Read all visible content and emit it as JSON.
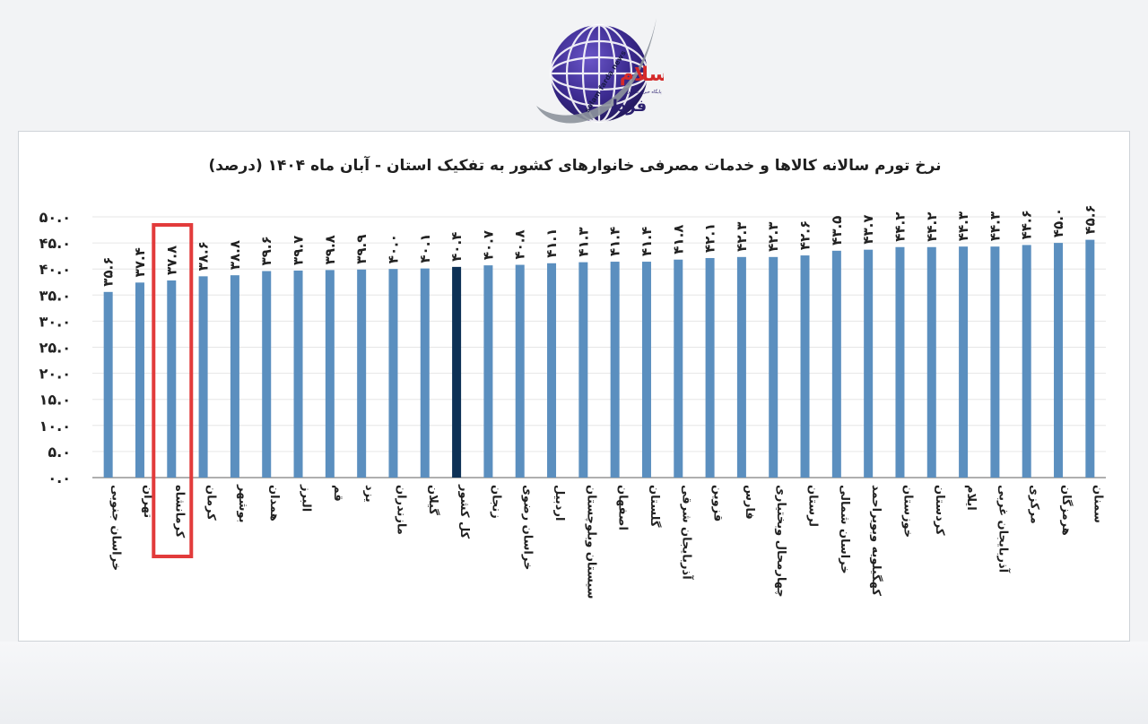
{
  "logo": {
    "text_main": "سلام",
    "text_sub": "فردا",
    "text_latin": "salam farda news",
    "text_tagline": "پایگاه خبری تحلیلی"
  },
  "colors": {
    "bar": "#5b8fbf",
    "bar_highlight": "#0d3156",
    "highlight_box": "#e23b3b",
    "axis": "#7f7f7f",
    "grid": "#e6e6e6"
  },
  "chart_data": {
    "type": "bar",
    "title": "نرخ تورم سالانه کالاها و خدمات مصرفی خانوارهای کشور به تفکیک استان - آبان ماه ۱۴۰۴ (درصد)",
    "ylim": [
      0,
      50
    ],
    "yticks": [
      "۰.۰",
      "۵.۰",
      "۱۰.۰",
      "۱۵.۰",
      "۲۰.۰",
      "۲۵.۰",
      "۳۰.۰",
      "۳۵.۰",
      "۴۰.۰",
      "۴۵.۰",
      "۵۰.۰"
    ],
    "ytick_values": [
      0,
      5,
      10,
      15,
      20,
      25,
      30,
      35,
      40,
      45,
      50
    ],
    "grid": true,
    "categories": [
      "خراسان جنوبی",
      "تهران",
      "کرمانشاه",
      "کرمان",
      "بوشهر",
      "همدان",
      "البرز",
      "قم",
      "یزد",
      "مازندران",
      "گیلان",
      "کل کشور",
      "زنجان",
      "خراسان رضوی",
      "اردبیل",
      "سیستان وبلوچستان",
      "اصفهان",
      "گلستان",
      "آذربایجان شرقی",
      "قزوین",
      "فارس",
      "چهارمحال وبختیاری",
      "لرستان",
      "خراسان شمالی",
      "کهگیلویه وبویراحمد",
      "خوزستان",
      "کردستان",
      "ایلام",
      "آذربایجان غربی",
      "مرکزی",
      "هرمزگان",
      "سمنان"
    ],
    "values": [
      35.6,
      37.4,
      37.8,
      38.6,
      38.8,
      39.6,
      39.7,
      39.8,
      39.9,
      40.0,
      40.1,
      40.4,
      40.7,
      40.8,
      41.1,
      41.3,
      41.4,
      41.4,
      41.8,
      42.1,
      42.3,
      42.3,
      42.6,
      43.5,
      43.7,
      44.2,
      44.2,
      44.3,
      44.3,
      44.6,
      45.0,
      45.6
    ],
    "data_labels": [
      "۳۵.۶",
      "۳۷.۴",
      "۳۷.۸",
      "۳۸.۶",
      "۳۸.۸",
      "۳۹.۶",
      "۳۹.۷",
      "۳۹.۸",
      "۳۹.۹",
      "۴۰.۰",
      "۴۰.۱",
      "۴۰.۴",
      "۴۰.۷",
      "۴۰.۸",
      "۴۱.۱",
      "۴۱.۳",
      "۴۱.۴",
      "۴۱.۴",
      "۴۱.۸",
      "۴۲.۱",
      "۴۲.۳",
      "۴۲.۳",
      "۴۲.۶",
      "۴۳.۵",
      "۴۳.۷",
      "۴۴.۲",
      "۴۴.۲",
      "۴۴.۳",
      "۴۴.۳",
      "۴۴.۶",
      "۴۵.۰",
      "۴۵.۶"
    ],
    "highlight_category": "کل کشور",
    "boxed_category": "کرمانشاه"
  }
}
